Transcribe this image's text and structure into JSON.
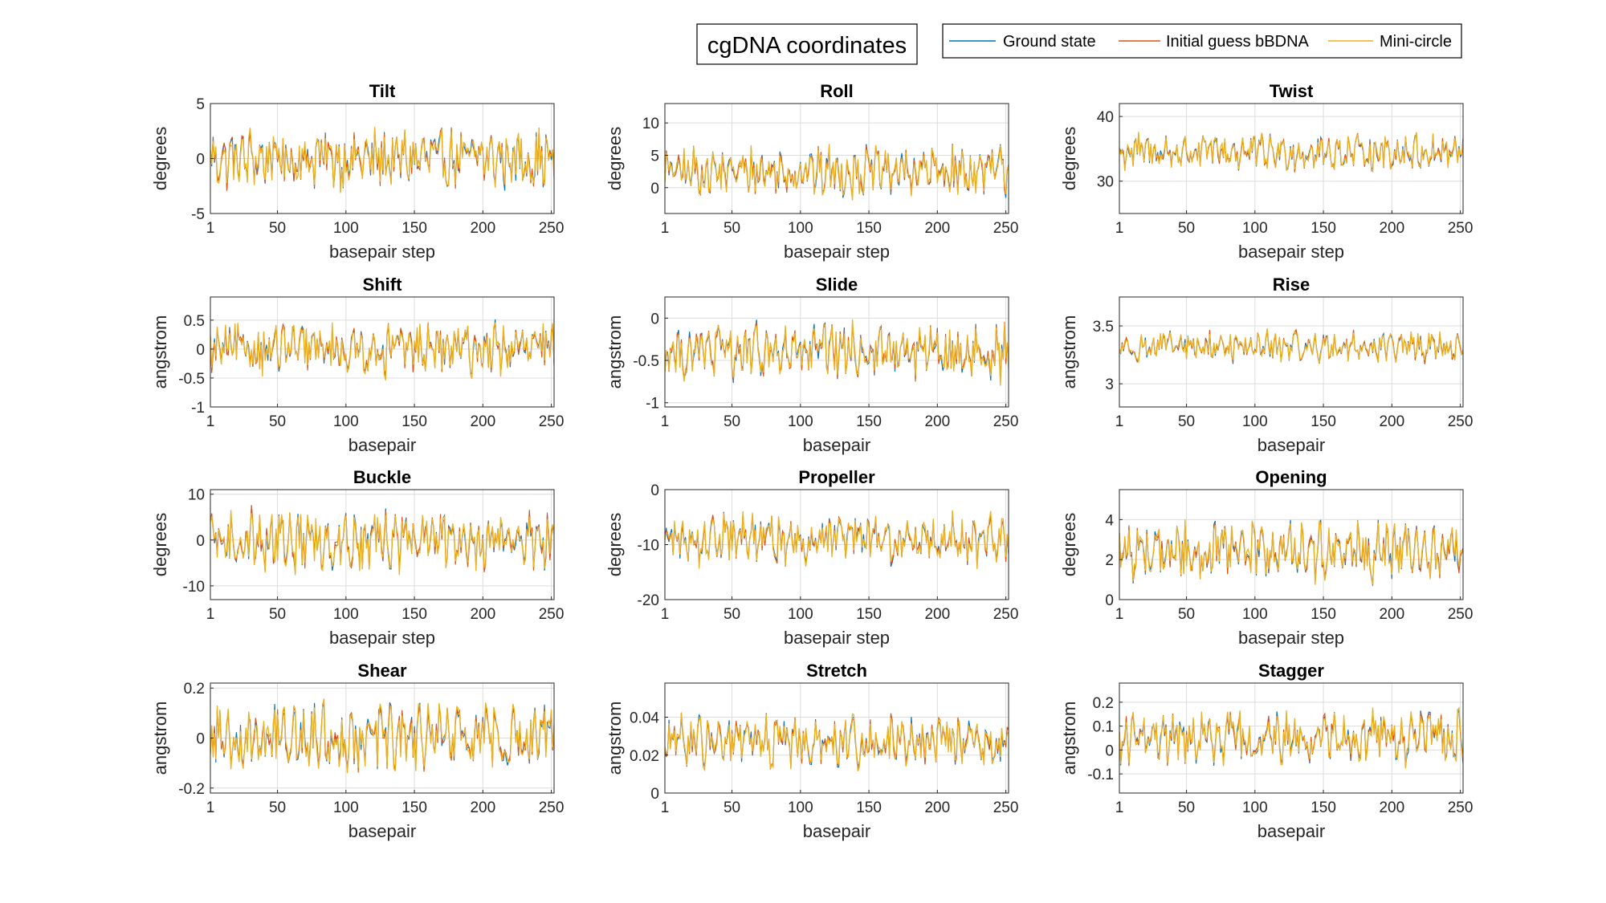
{
  "figure": {
    "title": "cgDNA coordinates",
    "legend": [
      "Ground state",
      "Initial guess bBDNA",
      "Mini-circle"
    ],
    "legend_placement": "top-right",
    "colors": [
      "#0072BD",
      "#D95319",
      "#EDB120"
    ]
  },
  "chart_data": [
    {
      "type": "line",
      "title": "Tilt",
      "xlabel": "basepair step",
      "ylabel": "degrees",
      "xlim": [
        1,
        252
      ],
      "ylim": [
        -5,
        5
      ],
      "xticks": [
        1,
        50,
        100,
        150,
        200,
        250
      ],
      "yticks": [
        -5,
        0,
        5
      ],
      "grid": true,
      "n_points": 252,
      "center": 0,
      "amplitude": 2.5,
      "series": [
        {
          "name": "Ground state"
        },
        {
          "name": "Initial guess bBDNA"
        },
        {
          "name": "Mini-circle"
        }
      ]
    },
    {
      "type": "line",
      "title": "Roll",
      "xlabel": "basepair step",
      "ylabel": "degrees",
      "xlim": [
        1,
        252
      ],
      "ylim": [
        -4,
        13
      ],
      "xticks": [
        1,
        50,
        100,
        150,
        200,
        250
      ],
      "yticks": [
        0,
        5,
        10
      ],
      "grid": true,
      "n_points": 252,
      "center": 2.5,
      "amplitude": 3.5,
      "series": [
        {
          "name": "Ground state"
        },
        {
          "name": "Initial guess bBDNA"
        },
        {
          "name": "Mini-circle"
        }
      ]
    },
    {
      "type": "line",
      "title": "Twist",
      "xlabel": "basepair step",
      "ylabel": "degrees",
      "xlim": [
        1,
        252
      ],
      "ylim": [
        25,
        42
      ],
      "xticks": [
        1,
        50,
        100,
        150,
        200,
        250
      ],
      "yticks": [
        30,
        40
      ],
      "grid": true,
      "n_points": 252,
      "center": 34.5,
      "amplitude": 2.6,
      "series": [
        {
          "name": "Ground state"
        },
        {
          "name": "Initial guess bBDNA"
        },
        {
          "name": "Mini-circle"
        }
      ]
    },
    {
      "type": "line",
      "title": "Shift",
      "xlabel": "basepair",
      "ylabel": "angstrom",
      "xlim": [
        1,
        252
      ],
      "ylim": [
        -1,
        0.9
      ],
      "xticks": [
        1,
        50,
        100,
        150,
        200,
        250
      ],
      "yticks": [
        -1,
        -0.5,
        0,
        0.5
      ],
      "grid": true,
      "n_points": 252,
      "center": 0,
      "amplitude": 0.4,
      "series": [
        {
          "name": "Ground state"
        },
        {
          "name": "Initial guess bBDNA"
        },
        {
          "name": "Mini-circle"
        }
      ]
    },
    {
      "type": "line",
      "title": "Slide",
      "xlabel": "basepair",
      "ylabel": "angstrom",
      "xlim": [
        1,
        252
      ],
      "ylim": [
        -1.05,
        0.25
      ],
      "xticks": [
        1,
        50,
        100,
        150,
        200,
        250
      ],
      "yticks": [
        -1,
        -0.5,
        0
      ],
      "grid": true,
      "n_points": 252,
      "center": -0.4,
      "amplitude": 0.3,
      "series": [
        {
          "name": "Ground state"
        },
        {
          "name": "Initial guess bBDNA"
        },
        {
          "name": "Mini-circle"
        }
      ]
    },
    {
      "type": "line",
      "title": "Rise",
      "xlabel": "basepair",
      "ylabel": "angstrom",
      "xlim": [
        1,
        252
      ],
      "ylim": [
        2.8,
        3.75
      ],
      "xticks": [
        1,
        50,
        100,
        150,
        200,
        250
      ],
      "yticks": [
        3,
        3.5
      ],
      "grid": true,
      "n_points": 252,
      "center": 3.32,
      "amplitude": 0.12,
      "series": [
        {
          "name": "Ground state"
        },
        {
          "name": "Initial guess bBDNA"
        },
        {
          "name": "Mini-circle"
        }
      ]
    },
    {
      "type": "line",
      "title": "Buckle",
      "xlabel": "basepair step",
      "ylabel": "degrees",
      "xlim": [
        1,
        252
      ],
      "ylim": [
        -13,
        11
      ],
      "xticks": [
        1,
        50,
        100,
        150,
        200,
        250
      ],
      "yticks": [
        -10,
        0,
        10
      ],
      "grid": true,
      "n_points": 252,
      "center": 0,
      "amplitude": 6,
      "series": [
        {
          "name": "Ground state"
        },
        {
          "name": "Initial guess bBDNA"
        },
        {
          "name": "Mini-circle"
        }
      ]
    },
    {
      "type": "line",
      "title": "Propeller",
      "xlabel": "basepair step",
      "ylabel": "degrees",
      "xlim": [
        1,
        252
      ],
      "ylim": [
        -20,
        0
      ],
      "xticks": [
        1,
        50,
        100,
        150,
        200,
        250
      ],
      "yticks": [
        -20,
        -10,
        0
      ],
      "grid": true,
      "n_points": 252,
      "center": -9,
      "amplitude": 4,
      "series": [
        {
          "name": "Ground state"
        },
        {
          "name": "Initial guess bBDNA"
        },
        {
          "name": "Mini-circle"
        }
      ]
    },
    {
      "type": "line",
      "title": "Opening",
      "xlabel": "basepair step",
      "ylabel": "degrees",
      "xlim": [
        1,
        252
      ],
      "ylim": [
        0,
        5.5
      ],
      "xticks": [
        1,
        50,
        100,
        150,
        200,
        250
      ],
      "yticks": [
        0,
        2,
        4
      ],
      "grid": true,
      "n_points": 252,
      "center": 2.4,
      "amplitude": 1.3,
      "series": [
        {
          "name": "Ground state"
        },
        {
          "name": "Initial guess bBDNA"
        },
        {
          "name": "Mini-circle"
        }
      ]
    },
    {
      "type": "line",
      "title": "Shear",
      "xlabel": "basepair",
      "ylabel": "angstrom",
      "xlim": [
        1,
        252
      ],
      "ylim": [
        -0.22,
        0.22
      ],
      "xticks": [
        1,
        50,
        100,
        150,
        200,
        250
      ],
      "yticks": [
        -0.2,
        0,
        0.2
      ],
      "grid": true,
      "n_points": 252,
      "center": 0,
      "amplitude": 0.12,
      "series": [
        {
          "name": "Ground state"
        },
        {
          "name": "Initial guess bBDNA"
        },
        {
          "name": "Mini-circle"
        }
      ]
    },
    {
      "type": "line",
      "title": "Stretch",
      "xlabel": "basepair",
      "ylabel": "angstrom",
      "xlim": [
        1,
        252
      ],
      "ylim": [
        0,
        0.058
      ],
      "xticks": [
        1,
        50,
        100,
        150,
        200,
        250
      ],
      "yticks": [
        0,
        0.02,
        0.04
      ],
      "grid": true,
      "n_points": 252,
      "center": 0.027,
      "amplitude": 0.012,
      "series": [
        {
          "name": "Ground state"
        },
        {
          "name": "Initial guess bBDNA"
        },
        {
          "name": "Mini-circle"
        }
      ]
    },
    {
      "type": "line",
      "title": "Stagger",
      "xlabel": "basepair",
      "ylabel": "angstrom",
      "xlim": [
        1,
        252
      ],
      "ylim": [
        -0.18,
        0.28
      ],
      "xticks": [
        1,
        50,
        100,
        150,
        200,
        250
      ],
      "yticks": [
        -0.1,
        0,
        0.1,
        0.2
      ],
      "grid": true,
      "n_points": 252,
      "center": 0.05,
      "amplitude": 0.1,
      "series": [
        {
          "name": "Ground state"
        },
        {
          "name": "Initial guess bBDNA"
        },
        {
          "name": "Mini-circle"
        }
      ]
    }
  ]
}
